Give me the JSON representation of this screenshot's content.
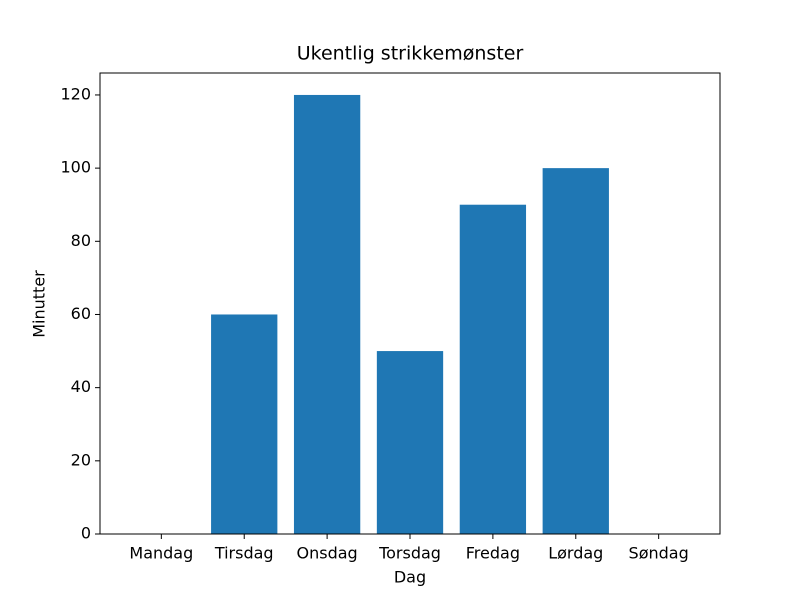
{
  "chart_data": {
    "type": "bar",
    "title": "Ukentlig strikkemønster",
    "x_label": "Dag",
    "y_label": "Minutter",
    "categories": [
      "Mandag",
      "Tirsdag",
      "Onsdag",
      "Torsdag",
      "Fredag",
      "Lørdag",
      "Søndag"
    ],
    "values": [
      0,
      60,
      120,
      50,
      90,
      100,
      0
    ],
    "color": "#1f77b4",
    "ylim": [
      0,
      126
    ],
    "yticks": [
      0,
      20,
      40,
      60,
      80,
      100,
      120
    ],
    "grid": false
  }
}
